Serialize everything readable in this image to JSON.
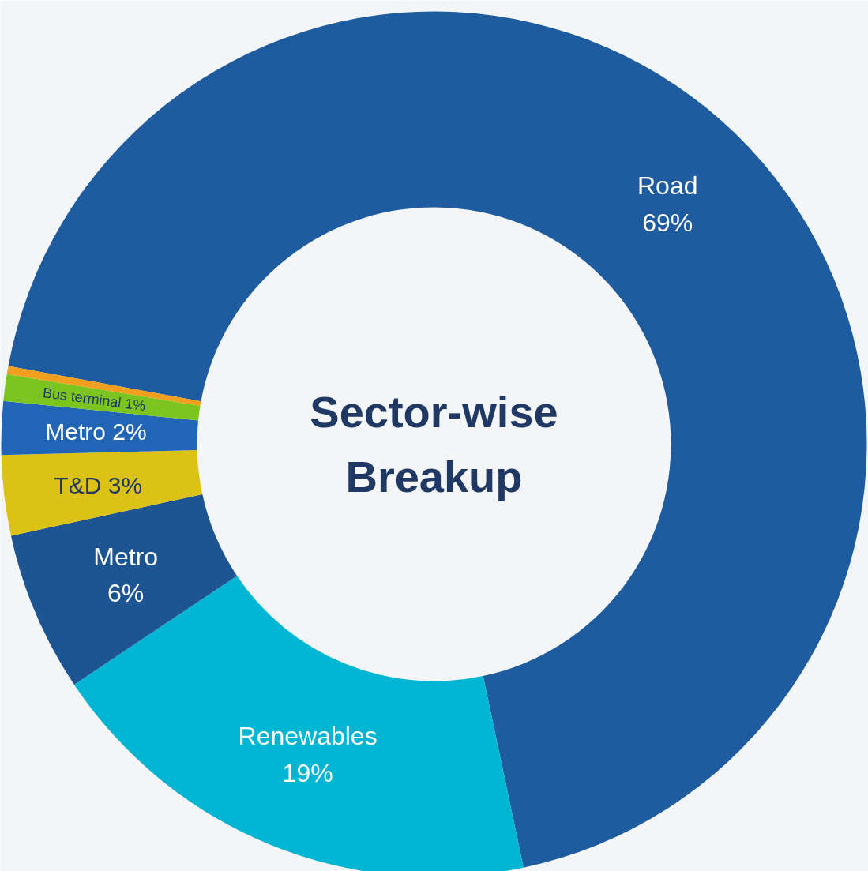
{
  "chart_data": {
    "type": "donut",
    "title": "Sector-wise Breakup",
    "categories": [
      "Road",
      "Renewables",
      "Metro",
      "T&D",
      "Metro",
      "Bus terminal",
      null
    ],
    "values": [
      69,
      19,
      6,
      3,
      2,
      1,
      0.3
    ],
    "colors": [
      "#1e5c9f",
      "#00b6d3",
      "#1c5592",
      "#dcc216",
      "#2166b6",
      "#7cc520",
      "#f0a01e"
    ],
    "value_labels": [
      "69%",
      "19%",
      "6%",
      "3%",
      "2%",
      "1%",
      null
    ]
  }
}
